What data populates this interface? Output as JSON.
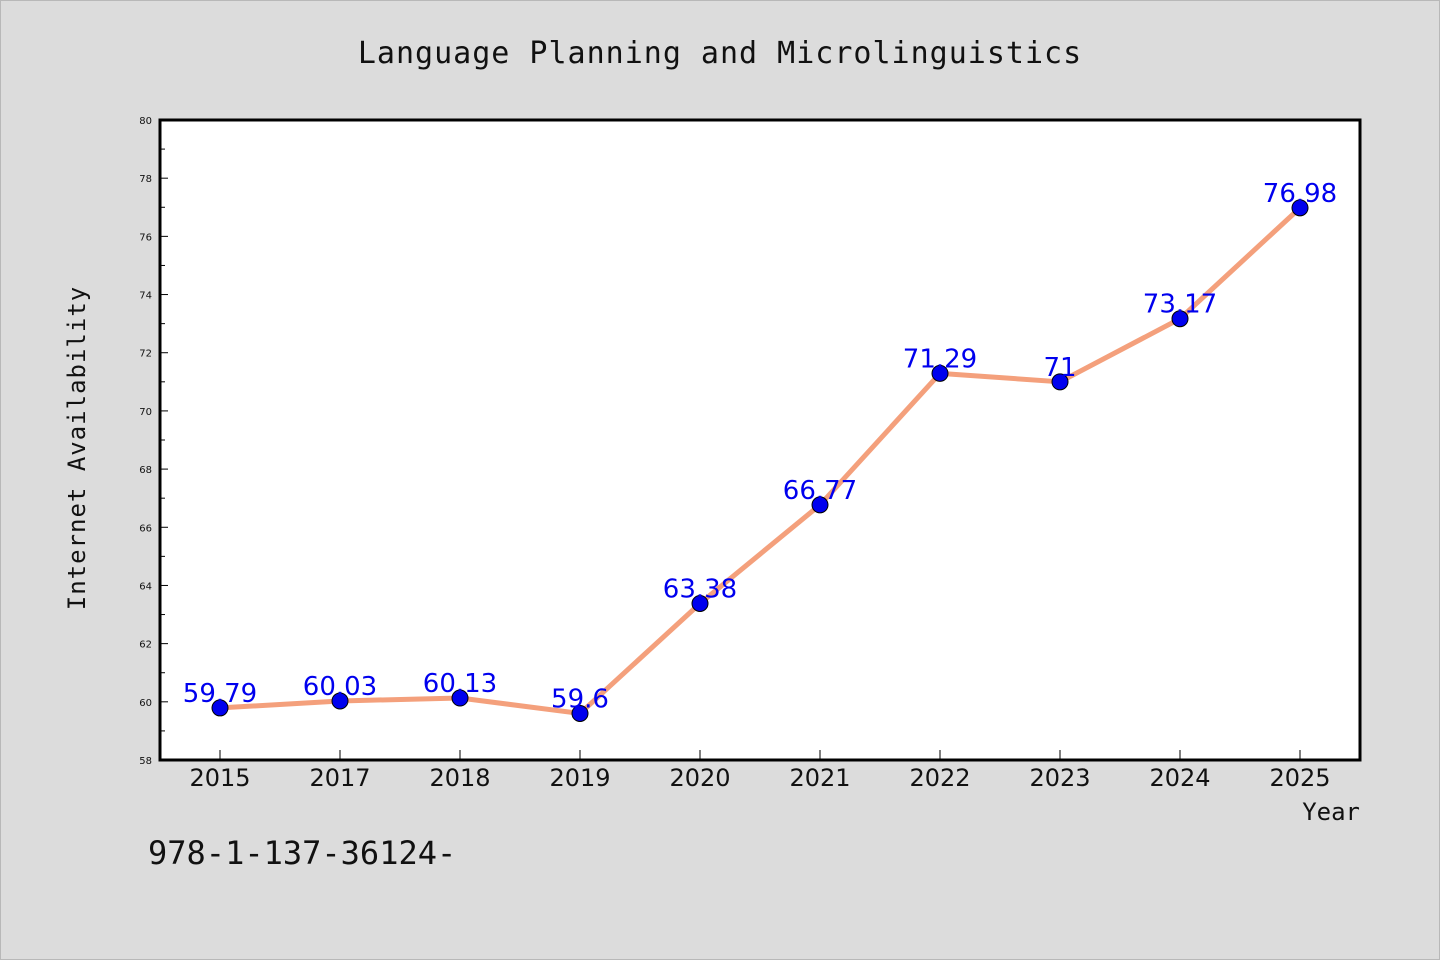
{
  "colors": {
    "background": "#dcdcdc",
    "plot_background": "#ffffff",
    "line": "#f4a07c",
    "marker": "#0000ee",
    "data_label": "#0000ee"
  },
  "footer_text": "978-1-137-36124-",
  "chart_data": {
    "type": "line",
    "title": "Language Planning and Microlinguistics",
    "xlabel": "Year",
    "ylabel": "Internet Availability",
    "categories": [
      "2015",
      "2017",
      "2018",
      "2019",
      "2020",
      "2021",
      "2022",
      "2023",
      "2024",
      "2025"
    ],
    "series": [
      {
        "values": [
          59.79,
          60.03,
          60.13,
          59.6,
          63.38,
          66.77,
          71.29,
          71,
          73.17,
          76.98
        ],
        "labels": [
          "59.79",
          "60.03",
          "60.13",
          "59.6",
          "63.38",
          "66.77",
          "71.29",
          "71",
          "73.17",
          "76.98"
        ]
      }
    ],
    "ylim": [
      58,
      80
    ],
    "yticks": [
      58,
      60,
      62,
      64,
      66,
      68,
      70,
      72,
      74,
      76,
      78,
      80
    ],
    "grid": false,
    "legend": "none"
  }
}
